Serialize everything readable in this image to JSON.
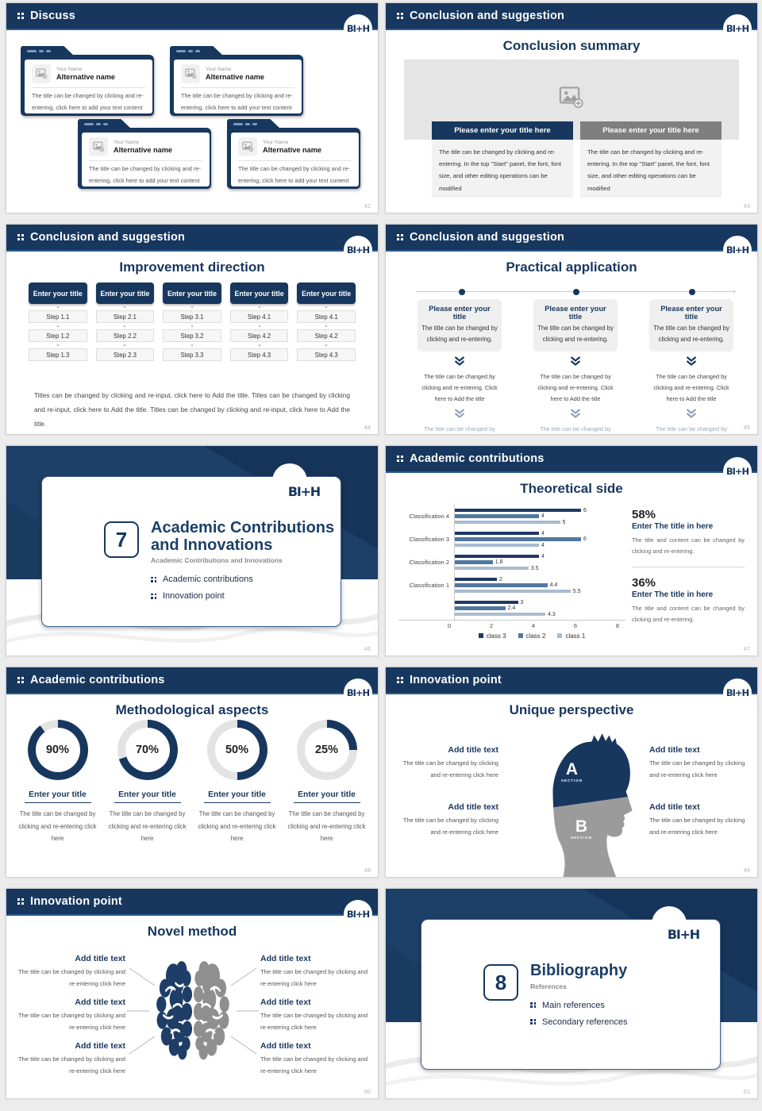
{
  "logo": {
    "text": "BI+H"
  },
  "colors": {
    "navy": "#17375E",
    "header_underline": "#2E5B8F",
    "section_bg": "#1C4068",
    "gray_bar": "#7F7F7F",
    "light_block": "#F2F2F2",
    "placeholder_bg": "#E5E5E5",
    "silhouette_gray": "#9B9B9B",
    "donut_track": "#E3E3E3"
  },
  "chart_data": {
    "type": "bar",
    "orientation": "horizontal",
    "title": "Theoretical side",
    "categories": [
      "Classification 4",
      "Classification 3",
      "Classification 2",
      "Classification 1",
      ""
    ],
    "series": [
      {
        "name": "class 3",
        "color": "#1F3864",
        "values": [
          6,
          4,
          4,
          2,
          3
        ]
      },
      {
        "name": "class 2",
        "color": "#50779F",
        "values": [
          4,
          6,
          1.8,
          4.4,
          2.4
        ]
      },
      {
        "name": "class 1",
        "color": "#A9BCCF",
        "values": [
          5,
          4,
          3.5,
          5.5,
          4.3
        ]
      }
    ],
    "xticks": [
      "0",
      "2",
      "4",
      "6",
      "8"
    ],
    "xmax": 8,
    "grid": false,
    "legend_position": "bottom"
  },
  "slides": {
    "discuss": {
      "page": "42",
      "header": "Discuss",
      "card": {
        "name_label": "Your Name",
        "alt_name": "Alternative name",
        "body": "The title can be changed by clicking and re-entering, click here to add your text content"
      }
    },
    "summary": {
      "page": "43",
      "header": "Conclusion and suggestion",
      "title": "Conclusion summary",
      "bar_navy": "Please enter your title here",
      "bar_gray": "Please enter your title here",
      "body": "The title can be changed by clicking and re-entering. In the top \"Start\" panel, the font, font size, and other editing operations can be modified"
    },
    "improvement": {
      "page": "44",
      "header": "Conclusion and suggestion",
      "title": "Improvement direction",
      "columns": [
        {
          "title": "Enter your title",
          "steps": [
            "Step 1.1",
            "Step 1.2",
            "Step 1.3"
          ]
        },
        {
          "title": "Enter your title",
          "steps": [
            "Step 2.1",
            "Step 2.2",
            "Step 2.3"
          ]
        },
        {
          "title": "Enter your title",
          "steps": [
            "Step 3.1",
            "Step 3.2",
            "Step 3.3"
          ]
        },
        {
          "title": "Enter your title",
          "steps": [
            "Step 4.1",
            "Step 4.2",
            "Step 4.3"
          ]
        },
        {
          "title": "Enter your title",
          "steps": [
            "Step 4.1",
            "Step 4.2",
            "Step 4.3"
          ]
        }
      ],
      "caption": "Titles can be changed by clicking and re-input, click here to Add the title. Titles can be changed by clicking and re-input, click here to Add the title. Titles can be changed by clicking and re-input, click here to Add the title."
    },
    "practical": {
      "page": "45",
      "header": "Conclusion and suggestion",
      "title": "Practical application",
      "column_count": 3,
      "card_title": "Please enter your title",
      "card_body": "The title can be changed by clicking and re-entering.",
      "step_text": "The title can be changed by clicking and re-entering. Click here to Add the title"
    },
    "section7": {
      "page": "46",
      "number": "7",
      "title": "Academic Contributions and Innovations",
      "subtitle": "Academic Contributions and Innovations",
      "bullets": [
        "Academic contributions",
        "Innovation point"
      ]
    },
    "theoretical": {
      "page": "47",
      "header": "Academic contributions",
      "title": "Theoretical side",
      "stats": [
        {
          "pct": "58%",
          "title": "Enter The title in here",
          "body": "The title and content can be changed by clicking and re-entering."
        },
        {
          "pct": "36%",
          "title": "Enter The title in here",
          "body": "The title and content can be changed by clicking and re-entering."
        }
      ]
    },
    "method": {
      "page": "48",
      "header": "Academic contributions",
      "title": "Methodological aspects",
      "item_title": "Enter your title",
      "item_body": "The title can be changed by clicking and re-entering click here",
      "donuts": [
        {
          "value": 90,
          "label": "90%"
        },
        {
          "value": 70,
          "label": "70%"
        },
        {
          "value": 50,
          "label": "50%"
        },
        {
          "value": 25,
          "label": "25%"
        }
      ]
    },
    "unique": {
      "page": "49",
      "header": "Innovation point",
      "title": "Unique perspective",
      "item_title": "Add title text",
      "item_body": "The title can be changed by clicking and re-entering click here",
      "sections": [
        {
          "letter": "A",
          "label": "SECTION"
        },
        {
          "letter": "B",
          "label": "SECTION"
        }
      ]
    },
    "novel": {
      "page": "50",
      "header": "Innovation point",
      "title": "Novel method",
      "item_title": "Add title text",
      "item_body": "The title can be changed by clicking and re-entering click here"
    },
    "bibliography": {
      "page": "51",
      "number": "8",
      "title": "Bibliography",
      "subtitle": "References",
      "bullets": [
        "Main references",
        "Secondary references"
      ]
    }
  }
}
